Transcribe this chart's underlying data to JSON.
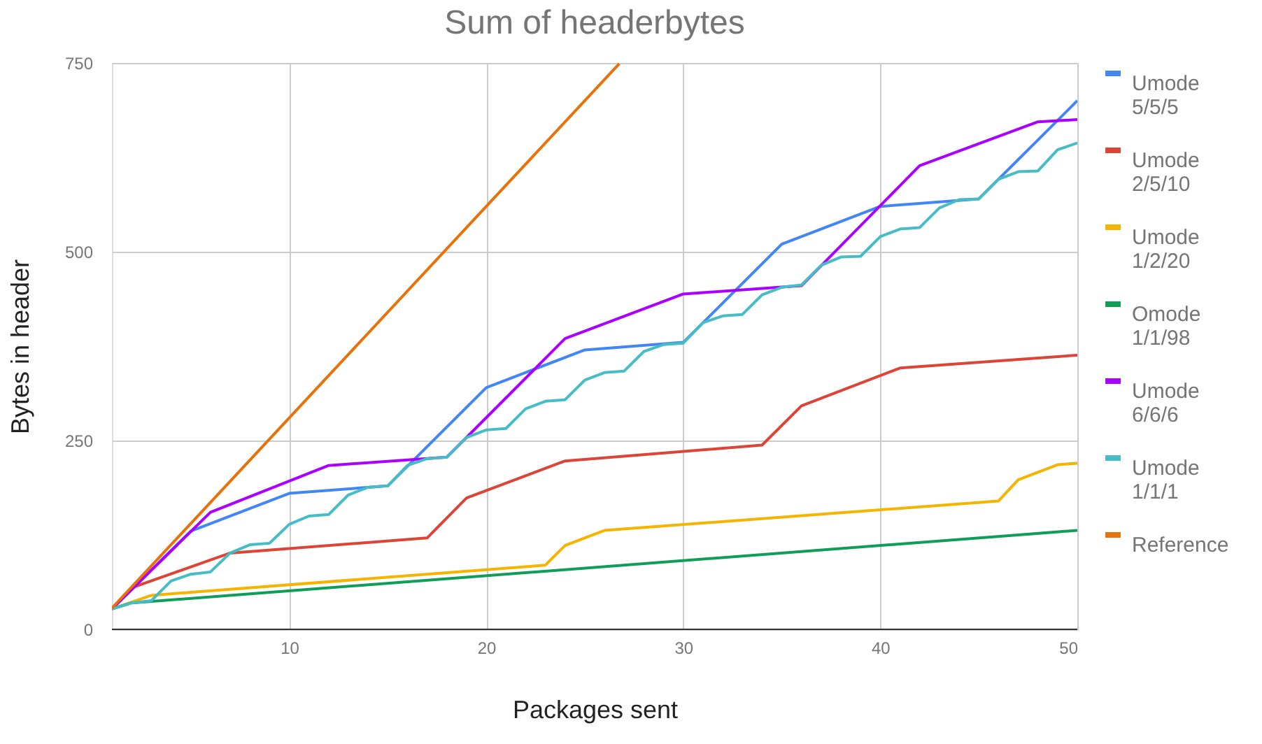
{
  "chart_data": {
    "type": "line",
    "title": "Sum of headerbytes",
    "xlabel": "Packages sent",
    "ylabel": "Bytes in header",
    "xlim": [
      1,
      50
    ],
    "xticks": [
      10,
      20,
      30,
      40,
      50
    ],
    "ylim": [
      0,
      750
    ],
    "yticks": [
      0,
      250,
      500,
      750
    ],
    "grid": true,
    "legend": "right",
    "marker": "none",
    "line_style": "solid",
    "series": [
      {
        "name": "Umode 5/5/5",
        "color": "#4285f4",
        "x": [
          1,
          5,
          10,
          15,
          20,
          25,
          30,
          35,
          40,
          45,
          50
        ],
        "values": [
          27,
          130,
          180,
          190,
          320,
          370,
          380,
          510,
          560,
          570,
          700
        ]
      },
      {
        "name": "Umode 2/5/10",
        "color": "#db4437",
        "x": [
          1,
          2,
          7,
          17,
          19,
          24,
          34,
          36,
          41,
          50
        ],
        "values": [
          27,
          55,
          101,
          121,
          174,
          223,
          244,
          296,
          346,
          363
        ]
      },
      {
        "name": "Umode 1/2/20",
        "color": "#f4b400",
        "x": [
          1,
          3,
          23,
          24,
          26,
          46,
          47,
          49,
          50
        ],
        "values": [
          27,
          45,
          85,
          111,
          131,
          170,
          198,
          218,
          220
        ]
      },
      {
        "name": "Omode 1/1/98",
        "color": "#0f9d58",
        "x": [
          1,
          2,
          50
        ],
        "values": [
          27,
          35,
          131
        ]
      },
      {
        "name": "Umode 6/6/6",
        "color": "#aa00ff",
        "x": [
          1,
          6,
          12,
          18,
          24,
          30,
          36,
          42,
          48,
          50
        ],
        "values": [
          27,
          155,
          217,
          228,
          385,
          444,
          455,
          614,
          672,
          675
        ]
      },
      {
        "name": "Umode 1/1/1",
        "color": "#46bdc6",
        "x": [
          1,
          2,
          3,
          4,
          5,
          6,
          7,
          8,
          9,
          10,
          11,
          12,
          13,
          14,
          15,
          16,
          17,
          18,
          19,
          20,
          21,
          22,
          23,
          24,
          25,
          26,
          27,
          28,
          29,
          30,
          31,
          32,
          33,
          34,
          35,
          36,
          37,
          38,
          39,
          40,
          41,
          42,
          43,
          44,
          45,
          46,
          47,
          48,
          49,
          50
        ],
        "values": [
          27,
          35,
          38,
          64,
          73,
          76,
          101,
          112,
          114,
          139,
          150,
          152,
          178,
          188,
          190,
          217,
          226,
          228,
          254,
          264,
          266,
          292,
          302,
          304,
          330,
          340,
          342,
          368,
          377,
          379,
          406,
          415,
          417,
          443,
          453,
          456,
          482,
          493,
          494,
          520,
          530,
          532,
          558,
          569,
          570,
          596,
          606,
          607,
          635,
          644
        ]
      },
      {
        "name": "Reference",
        "color": "#e8710a",
        "x": [
          1,
          10,
          20,
          26.75
        ],
        "values": [
          28,
          280,
          560,
          749
        ]
      }
    ]
  }
}
